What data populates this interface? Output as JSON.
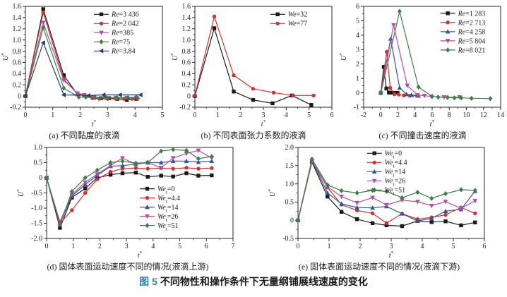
{
  "figure": {
    "caption_prefix": "图 5",
    "caption_text": "不同物性和操作条件下无量纲铺展线速度的变化",
    "caption_prefix_color": "#2f7fad"
  },
  "chart_data": [
    {
      "id": "a",
      "type": "line",
      "caption": "(a) 不同黏度的液滴",
      "xlabel": {
        "it": "t",
        "sup": "*"
      },
      "ylabel": {
        "it": "U",
        "sup": "*"
      },
      "xlim": [
        0,
        5
      ],
      "ylim": [
        -0.2,
        1.6
      ],
      "xticks": {
        "v": [
          0,
          1,
          2,
          3,
          4,
          5
        ],
        "t": [
          "0",
          "1",
          "2",
          "3",
          "4",
          "5"
        ]
      },
      "yticks": {
        "v": [
          -0.2,
          0,
          0.2,
          0.4,
          0.6,
          0.8,
          1.0,
          1.2,
          1.4,
          1.6
        ],
        "t": [
          "-0.2",
          "0",
          "0.2",
          "0.4",
          "0.6",
          "0.8",
          "1.0",
          "1.2",
          "1.4",
          "1.6"
        ]
      },
      "grid": false,
      "legend": {
        "fx": 0.5,
        "fy": 0.03
      },
      "series": [
        {
          "label": {
            "it": "Re",
            "rest": "=3 436"
          },
          "color": "#1a1a1a",
          "marker": "square",
          "x": [
            0,
            0.65,
            1.4,
            1.9,
            2.15,
            2.45,
            2.75,
            3.05,
            3.35,
            3.7,
            4.05
          ],
          "y": [
            0,
            1.55,
            0.37,
            0.03,
            0.01,
            -0.03,
            -0.04,
            -0.04,
            -0.05,
            -0.07,
            -0.05
          ]
        },
        {
          "label": {
            "it": "Re",
            "rest": "=2 042"
          },
          "color": "#cc3333",
          "marker": "circle",
          "x": [
            0,
            0.65,
            1.4,
            1.9,
            2.15,
            2.45,
            2.7,
            3.0,
            3.3,
            3.6,
            3.9,
            4.1
          ],
          "y": [
            0,
            1.49,
            0.3,
            0.04,
            0.02,
            -0.04,
            -0.05,
            -0.05,
            -0.05,
            -0.05,
            -0.05,
            -0.04
          ]
        },
        {
          "label": {
            "it": "Re",
            "rest": "=385"
          },
          "color": "#a55ba4",
          "marker": "triangle-down",
          "x": [
            0,
            0.65,
            1.4,
            1.9,
            2.15,
            2.5,
            2.9,
            3.3,
            3.7,
            4.05
          ],
          "y": [
            0,
            1.31,
            0.28,
            0.05,
            0.02,
            -0.02,
            -0.03,
            -0.03,
            -0.03,
            -0.03
          ]
        },
        {
          "label": {
            "it": "Re",
            "rest": "=75"
          },
          "color": "#3e7d45",
          "marker": "diamond",
          "x": [
            0,
            0.65,
            1.4,
            1.95,
            2.2,
            2.55,
            2.95,
            3.35,
            3.75,
            4.05
          ],
          "y": [
            0,
            1.22,
            0.14,
            -0.02,
            -0.02,
            -0.03,
            -0.03,
            -0.03,
            -0.03,
            -0.02
          ]
        },
        {
          "label": {
            "it": "Re",
            "rest": "=3.84"
          },
          "color": "#2a3b70",
          "marker": "triangle-left",
          "x": [
            0,
            0.65,
            1.4,
            2.3,
            2.85,
            3.45,
            4.2
          ],
          "y": [
            0,
            0.95,
            0.02,
            0.01,
            0.02,
            0.02,
            0.02
          ]
        }
      ]
    },
    {
      "id": "b",
      "type": "line",
      "caption": "(b) 不同表面张力系数的液滴",
      "xlabel": {
        "it": "t",
        "sup": "*"
      },
      "ylabel": {
        "it": "U",
        "sup": "*"
      },
      "xlim": [
        0,
        6
      ],
      "ylim": [
        -0.2,
        1.6
      ],
      "xticks": {
        "v": [
          0,
          1,
          2,
          3,
          4,
          5,
          6
        ],
        "t": [
          "0",
          "1",
          "2",
          "3",
          "4",
          "5",
          "6"
        ]
      },
      "yticks": {
        "v": [
          -0.2,
          0,
          0.2,
          0.4,
          0.6,
          0.8,
          1.0,
          1.2,
          1.4,
          1.6
        ],
        "t": [
          "-0.2",
          "0",
          "0.2",
          "0.4",
          "0.6",
          "0.8",
          "1.0",
          "1.2",
          "1.4",
          "1.6"
        ]
      },
      "grid": false,
      "legend": {
        "fx": 0.55,
        "fy": 0.03
      },
      "series": [
        {
          "label": {
            "it": "We",
            "rest": "=32"
          },
          "color": "#1a1a1a",
          "marker": "square",
          "x": [
            0,
            0.85,
            1.7,
            2.55,
            3.4,
            4.25,
            5.1
          ],
          "y": [
            0,
            1.21,
            0.08,
            -0.07,
            -0.13,
            0.01,
            -0.16
          ]
        },
        {
          "label": {
            "it": "We",
            "rest": "=77"
          },
          "color": "#cc3333",
          "marker": "circle",
          "x": [
            0,
            0.85,
            1.7,
            2.55,
            3.45,
            4.3,
            5.2
          ],
          "y": [
            0.01,
            1.42,
            0.37,
            0.13,
            0.06,
            0.01,
            0.01
          ]
        }
      ]
    },
    {
      "id": "c",
      "type": "line",
      "caption": "(c) 不同撞击速度的液滴",
      "xlabel": {
        "it": "t",
        "sup": "*"
      },
      "ylabel": {
        "it": "U",
        "sup": "*"
      },
      "xlim": [
        -2,
        14
      ],
      "ylim": [
        -1,
        6
      ],
      "xticks": {
        "v": [
          -2,
          0,
          2,
          4,
          6,
          8,
          10,
          12,
          14
        ],
        "t": [
          "-2",
          "0",
          "2",
          "4",
          "6",
          "8",
          "10",
          "12",
          "14"
        ]
      },
      "yticks": {
        "v": [
          -1,
          0,
          1,
          2,
          3,
          4,
          5,
          6
        ],
        "t": [
          "-1",
          "0",
          "1",
          "2",
          "3",
          "4",
          "5",
          "6"
        ]
      },
      "grid": false,
      "legend": {
        "fx": 0.56,
        "fy": 0.02
      },
      "series": [
        {
          "label": {
            "it": "Re",
            "rest": "=1 283"
          },
          "color": "#1a1a1a",
          "marker": "square",
          "x": [
            0,
            0.35,
            0.65,
            0.95,
            1.25,
            1.6,
            1.95
          ],
          "y": [
            0,
            1.8,
            0.3,
            0.02,
            0.01,
            0.0,
            0.0
          ]
        },
        {
          "label": {
            "it": "Re",
            "rest": "=2 713"
          },
          "color": "#cc3333",
          "marker": "circle",
          "x": [
            0,
            0.7,
            1.1,
            1.6,
            2.1,
            2.7,
            3.4,
            4.2
          ],
          "y": [
            0,
            2.85,
            0.35,
            -0.1,
            -0.12,
            -0.18,
            -0.2,
            -0.2
          ]
        },
        {
          "label": {
            "it": "Re",
            "rest": "=4 258"
          },
          "color": "#3b5498",
          "marker": "triangle-up",
          "x": [
            0,
            1.15,
            2.2,
            3.0,
            3.6,
            4.4
          ],
          "y": [
            0,
            3.75,
            0.35,
            -0.1,
            -0.15,
            -0.2
          ]
        },
        {
          "label": {
            "it": "Re",
            "rest": "=5 804"
          },
          "color": "#b14fa5",
          "marker": "triangle-down",
          "x": [
            0,
            1.5,
            3.1,
            4.3,
            5.1,
            5.9,
            7.4,
            9.2
          ],
          "y": [
            0,
            4.7,
            0.5,
            -0.15,
            -0.2,
            -0.25,
            -0.3,
            -0.3
          ]
        },
        {
          "label": {
            "it": "Re",
            "rest": "=8 021"
          },
          "color": "#3e7d45",
          "marker": "diamond",
          "x": [
            0,
            2.2,
            4.4,
            6.0,
            6.7,
            7.8,
            8.6,
            9.4,
            10.6,
            12.8
          ],
          "y": [
            0,
            5.65,
            0.4,
            -0.25,
            -0.3,
            -0.32,
            -0.35,
            -0.35,
            -0.38,
            -0.4
          ]
        }
      ]
    },
    {
      "id": "d",
      "type": "line",
      "caption": "(d) 固体表面运动速度不同的情况(液滴上游)",
      "xlabel": {
        "it": "t",
        "sup": "*"
      },
      "ylabel": {
        "it": "U",
        "sup": "*"
      },
      "xlim": [
        0,
        7
      ],
      "ylim": [
        -2,
        1
      ],
      "xticks": {
        "v": [
          0,
          1,
          2,
          3,
          4,
          5,
          6,
          7
        ],
        "t": [
          "0",
          "1",
          "2",
          "3",
          "4",
          "5",
          "6",
          "7"
        ]
      },
      "yticks": {
        "v": [
          -2,
          -1.5,
          -1,
          -0.5,
          0,
          0.5,
          1
        ],
        "t": [
          "-2.0",
          "-1.5",
          "-1.0",
          "-0.5",
          "0",
          "0.5",
          "1.0"
        ]
      },
      "grid": false,
      "legend": {
        "fx": 0.5,
        "fy": 0.4
      },
      "series": [
        {
          "label": {
            "it": "We",
            "sub": "t",
            "rest": "=0"
          },
          "color": "#1a1a1a",
          "marker": "square",
          "x": [
            0,
            0.5,
            0.95,
            1.45,
            1.9,
            2.4,
            2.85,
            3.35,
            3.8,
            4.3,
            4.75,
            5.25,
            5.7,
            6.2
          ],
          "y": [
            0,
            -1.65,
            -0.65,
            -0.35,
            0.0,
            0.1,
            0.15,
            0.17,
            0.03,
            0.07,
            0.04,
            0.15,
            0.07,
            0.08
          ]
        },
        {
          "label": {
            "it": "We",
            "sub": "t",
            "rest": "=4.4"
          },
          "color": "#cc3333",
          "marker": "circle",
          "x": [
            0,
            0.5,
            0.95,
            1.45,
            1.9,
            2.4,
            2.85,
            3.35,
            3.8,
            4.3,
            4.75,
            5.25,
            5.7,
            6.2
          ],
          "y": [
            0,
            -1.5,
            -1.07,
            -0.5,
            -0.05,
            0.2,
            0.3,
            0.32,
            0.3,
            0.32,
            0.3,
            0.33,
            0.3,
            0.32
          ]
        },
        {
          "label": {
            "it": "We",
            "sub": "t",
            "rest": "=14"
          },
          "color": "#3b5498",
          "marker": "triangle-up",
          "x": [
            0,
            0.5,
            0.95,
            1.45,
            1.9,
            2.4,
            2.85,
            3.35,
            3.8,
            4.3,
            4.75,
            5.25,
            5.7,
            6.2
          ],
          "y": [
            0,
            -1.5,
            -0.6,
            -0.22,
            0.08,
            0.38,
            0.4,
            0.45,
            0.5,
            0.5,
            0.55,
            0.55,
            0.52,
            0.55
          ]
        },
        {
          "label": {
            "it": "We",
            "sub": "t",
            "rest": "=26"
          },
          "color": "#b14fa5",
          "marker": "triangle-down",
          "x": [
            0,
            0.5,
            0.95,
            1.45,
            1.9,
            2.4,
            2.85,
            3.35,
            3.8,
            4.3,
            4.75,
            5.25,
            5.7,
            6.2
          ],
          "y": [
            0,
            -1.45,
            -0.55,
            -0.15,
            0.12,
            0.4,
            0.65,
            0.45,
            0.5,
            0.33,
            0.65,
            0.8,
            0.9,
            0.65
          ]
        },
        {
          "label": {
            "it": "We",
            "sub": "t",
            "rest": "=51"
          },
          "color": "#3e7d45",
          "marker": "diamond",
          "x": [
            0,
            0.5,
            0.95,
            1.45,
            1.9,
            2.4,
            2.85,
            3.35,
            3.8,
            4.3,
            4.75,
            5.25,
            5.7,
            6.2
          ],
          "y": [
            0,
            -1.55,
            -0.45,
            0.0,
            0.25,
            0.5,
            0.55,
            0.48,
            0.5,
            0.88,
            0.93,
            0.9,
            0.63,
            0.7
          ]
        }
      ]
    },
    {
      "id": "e",
      "type": "line",
      "caption": "(e) 固体表面运动速度不同的情况(液滴下游)",
      "xlabel": {
        "it": "t",
        "sup": "*"
      },
      "ylabel": {
        "it": "U",
        "sup": "*"
      },
      "xlim": [
        0,
        6
      ],
      "ylim": [
        -0.5,
        2
      ],
      "xticks": {
        "v": [
          0,
          1,
          2,
          3,
          4,
          5,
          6
        ],
        "t": [
          "0",
          "1",
          "2",
          "3",
          "4",
          "5",
          "6"
        ]
      },
      "yticks": {
        "v": [
          -0.5,
          0,
          0.5,
          1,
          1.5,
          2
        ],
        "t": [
          "-0.5",
          "0",
          "0.5",
          "1.0",
          "1.5",
          "2.0"
        ]
      },
      "grid": false,
      "legend": {
        "fx": 0.37,
        "fy": 0.01
      },
      "series": [
        {
          "label": {
            "it": "We",
            "sub": "t",
            "rest": "=0"
          },
          "color": "#1a1a1a",
          "marker": "square",
          "x": [
            0,
            0.45,
            0.95,
            1.4,
            1.9,
            2.4,
            2.85,
            3.35,
            3.85,
            4.3,
            4.75,
            5.25,
            5.7
          ],
          "y": [
            0,
            1.6,
            0.65,
            0.23,
            0.03,
            -0.08,
            -0.14,
            -0.16,
            -0.02,
            -0.05,
            -0.03,
            -0.14,
            -0.06
          ]
        },
        {
          "label": {
            "it": "We",
            "sub": "t",
            "rest": "=4.4"
          },
          "color": "#cc3333",
          "marker": "circle",
          "x": [
            0,
            0.45,
            0.95,
            1.4,
            1.9,
            2.4,
            2.85,
            3.35,
            3.85,
            4.3,
            4.75,
            5.25,
            5.7
          ],
          "y": [
            0,
            1.62,
            0.9,
            0.43,
            0.27,
            0.19,
            -0.08,
            0.18,
            0.03,
            0.08,
            0.15,
            0.35,
            0.19
          ]
        },
        {
          "label": {
            "it": "We",
            "sub": "t",
            "rest": "=14"
          },
          "color": "#3b5498",
          "marker": "triangle-up",
          "x": [
            0,
            0.45,
            0.95,
            1.4,
            1.9,
            2.4,
            2.85,
            3.35,
            3.85,
            4.3,
            4.75,
            5.25,
            5.7
          ],
          "y": [
            0,
            1.65,
            0.75,
            0.45,
            0.35,
            0.34,
            0.38,
            0.18,
            -0.02,
            0.05,
            0.25,
            0.3,
            0.8
          ]
        },
        {
          "label": {
            "it": "We",
            "sub": "t",
            "rest": "=26"
          },
          "color": "#b14fa5",
          "marker": "triangle-down",
          "x": [
            0,
            0.45,
            0.95,
            1.4,
            1.9,
            2.4,
            2.85,
            3.35,
            3.85,
            4.3,
            4.75,
            5.25,
            5.7
          ],
          "y": [
            0,
            1.63,
            0.92,
            0.65,
            0.48,
            0.62,
            0.42,
            0.55,
            0.51,
            0.4,
            0.51,
            0.33,
            0.53
          ]
        },
        {
          "label": {
            "it": "We",
            "sub": "t",
            "rest": "=51"
          },
          "color": "#3e7d45",
          "marker": "diamond",
          "x": [
            0,
            0.45,
            0.95,
            1.4,
            1.9,
            2.4,
            2.85,
            3.35,
            3.85,
            4.3,
            4.75,
            5.25,
            5.7
          ],
          "y": [
            0,
            1.68,
            0.97,
            0.81,
            0.75,
            0.82,
            0.79,
            0.62,
            0.77,
            0.6,
            0.73,
            0.84,
            0.82
          ]
        }
      ]
    }
  ]
}
